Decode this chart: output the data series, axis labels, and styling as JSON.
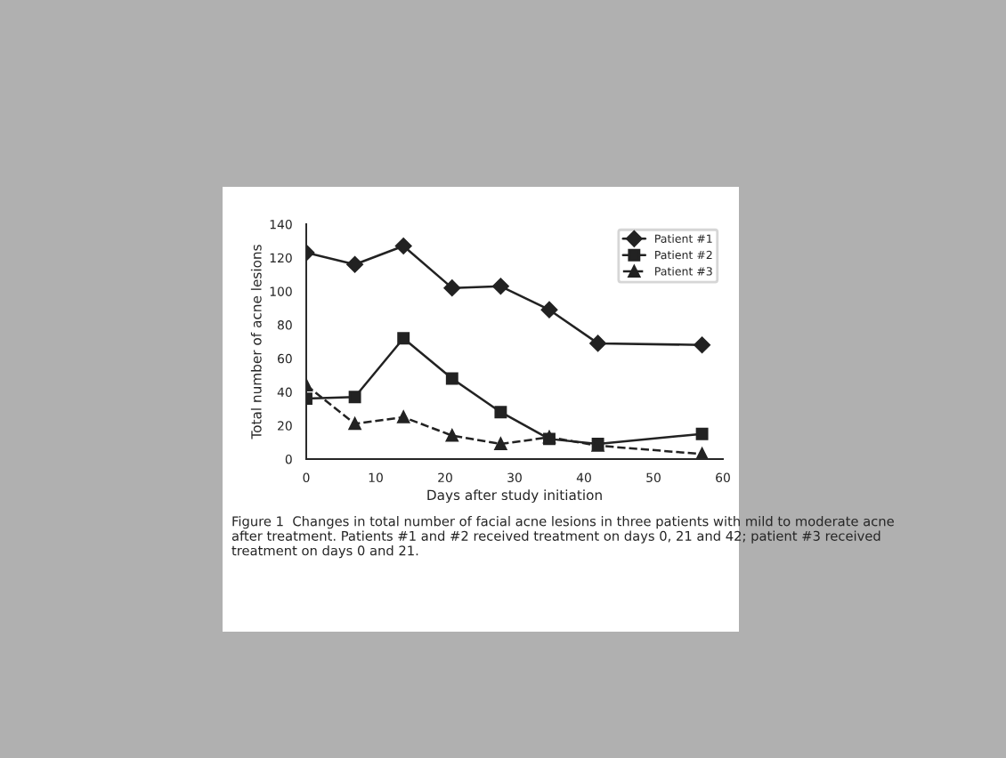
{
  "chart_data": {
    "type": "line",
    "xlabel": "Days after study initiation",
    "ylabel": "Total number of acne lesions",
    "x": [
      0,
      7,
      14,
      21,
      28,
      35,
      42,
      57
    ],
    "series": [
      {
        "name": "Patient #1",
        "color": "#222222",
        "marker": "diamond",
        "line_style": "solid",
        "values": [
          123,
          116,
          127,
          102,
          103,
          89,
          69,
          68
        ]
      },
      {
        "name": "Patient #2",
        "color": "#222222",
        "marker": "square",
        "line_style": "solid",
        "values": [
          36,
          37,
          72,
          48,
          28,
          12,
          9,
          15
        ]
      },
      {
        "name": "Patient #3",
        "color": "#222222",
        "marker": "triangle",
        "line_style": "dashed",
        "values": [
          44,
          21,
          25,
          14,
          9,
          13,
          8,
          3
        ]
      }
    ],
    "xlim": [
      0,
      60
    ],
    "xticks": [
      0,
      10,
      20,
      30,
      40,
      50,
      60
    ],
    "ylim": [
      0,
      140
    ],
    "yticks": [
      0,
      20,
      40,
      60,
      80,
      100,
      120,
      140
    ],
    "grid": false,
    "legend": "top right",
    "annotations": [
      "Figure 1  Changes in total number of facial acne lesions in three patients with mild to moderate acne after treatment. Patients #1 and #2 received treatment on days 0, 21 and 42; patient #3 received treatment on days 0 and 21."
    ]
  }
}
